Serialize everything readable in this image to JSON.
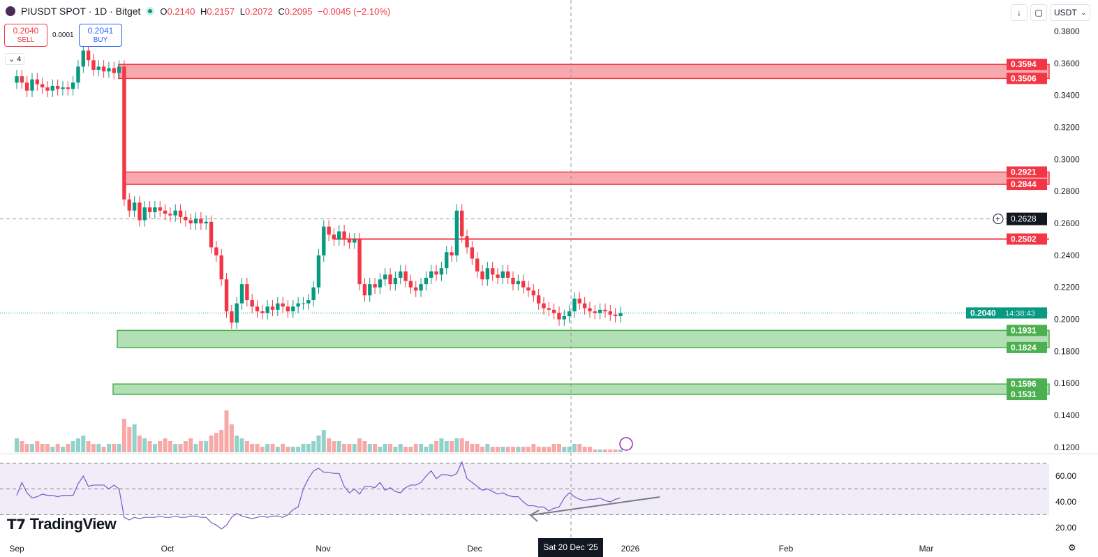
{
  "header": {
    "symbol": "PIUSDT SPOT · 1D · Bitget",
    "open_label": "O",
    "open": "0.2140",
    "high_label": "H",
    "high": "0.2157",
    "low_label": "L",
    "low": "0.2072",
    "close_label": "C",
    "close": "0.2095",
    "change": "−0.0045 (−2.10%)"
  },
  "trade": {
    "sell_price": "0.2040",
    "sell_label": "SELL",
    "buy_price": "0.2041",
    "buy_label": "BUY",
    "spread": "0.0001"
  },
  "indicators_count": "4",
  "toolbar": {
    "currency": "USDT",
    "download_icon": "arrow-down-icon",
    "fullscreen_icon": "fullscreen-icon"
  },
  "colors": {
    "up": "#089981",
    "down": "#f23645",
    "up_volume": "#92d2cc",
    "down_volume": "#f7a9a7",
    "resistance": "#f23645",
    "support": "#4caf50",
    "rsi": "#7e57c2"
  },
  "price_axis": {
    "ticks": [
      "0.3800",
      "0.3600",
      "0.3400",
      "0.3200",
      "0.3000",
      "0.2800",
      "0.2600",
      "0.2400",
      "0.2200",
      "0.2000",
      "0.1800",
      "0.1600",
      "0.1400",
      "0.1200"
    ]
  },
  "rsi_axis": {
    "ticks": [
      "60.00",
      "40.00",
      "20.00"
    ]
  },
  "time_axis": {
    "labels": [
      "Sep",
      "Oct",
      "Nov",
      "Dec",
      "2026",
      "Feb",
      "Mar"
    ],
    "crosshair_date": "Sat 20 Dec '25"
  },
  "levels": {
    "resistance_zones": [
      {
        "top": "0.3594",
        "bottom": "0.3506"
      },
      {
        "top": "0.2921",
        "bottom": "0.2844"
      }
    ],
    "resistance_line": "0.2502",
    "support_zones": [
      {
        "top": "0.1931",
        "bottom": "0.1824"
      },
      {
        "top": "0.1596",
        "bottom": "0.1531"
      }
    ],
    "crosshair_price": "0.2628",
    "last_price": "0.2040",
    "countdown": "14:38:43"
  },
  "brand": "TradingView",
  "chart_data": {
    "type": "candlestick",
    "start": "Sep 1",
    "closes": [
      0.352,
      0.348,
      0.343,
      0.35,
      0.347,
      0.345,
      0.343,
      0.346,
      0.344,
      0.345,
      0.344,
      0.348,
      0.358,
      0.368,
      0.362,
      0.356,
      0.358,
      0.355,
      0.357,
      0.354,
      0.358,
      0.275,
      0.268,
      0.273,
      0.262,
      0.27,
      0.267,
      0.27,
      0.268,
      0.266,
      0.265,
      0.268,
      0.264,
      0.262,
      0.26,
      0.263,
      0.26,
      0.261,
      0.245,
      0.24,
      0.225,
      0.205,
      0.198,
      0.21,
      0.222,
      0.212,
      0.208,
      0.205,
      0.204,
      0.208,
      0.206,
      0.21,
      0.208,
      0.205,
      0.208,
      0.21,
      0.21,
      0.212,
      0.22,
      0.24,
      0.258,
      0.253,
      0.25,
      0.255,
      0.25,
      0.248,
      0.25,
      0.222,
      0.215,
      0.222,
      0.22,
      0.225,
      0.228,
      0.222,
      0.226,
      0.23,
      0.224,
      0.22,
      0.218,
      0.222,
      0.226,
      0.23,
      0.228,
      0.232,
      0.242,
      0.24,
      0.268,
      0.252,
      0.245,
      0.238,
      0.23,
      0.225,
      0.232,
      0.228,
      0.226,
      0.23,
      0.226,
      0.222,
      0.224,
      0.22,
      0.218,
      0.215,
      0.21,
      0.207,
      0.206,
      0.204,
      0.2,
      0.202,
      0.205,
      0.213,
      0.21,
      0.207,
      0.205,
      0.204,
      0.206,
      0.205,
      0.203,
      0.202,
      0.204
    ],
    "volumes": [
      5,
      4,
      3,
      3,
      4,
      3,
      3,
      2,
      3,
      2,
      3,
      4,
      5,
      6,
      4,
      3,
      3,
      2,
      3,
      3,
      3,
      12,
      9,
      10,
      6,
      5,
      4,
      3,
      4,
      5,
      4,
      3,
      3,
      4,
      5,
      3,
      4,
      4,
      6,
      7,
      8,
      15,
      10,
      6,
      5,
      4,
      3,
      3,
      2,
      3,
      3,
      2,
      3,
      2,
      2,
      2,
      3,
      3,
      4,
      6,
      8,
      5,
      4,
      4,
      3,
      3,
      3,
      5,
      4,
      3,
      3,
      2,
      3,
      3,
      2,
      3,
      2,
      2,
      3,
      3,
      2,
      3,
      4,
      5,
      4,
      4,
      5,
      5,
      4,
      3,
      3,
      2,
      3,
      2,
      2,
      2,
      2,
      2,
      2,
      2,
      2,
      3,
      2,
      2,
      2,
      3,
      3,
      2,
      2,
      3,
      3,
      2,
      2,
      1,
      1,
      1,
      1,
      1,
      1
    ],
    "rsi": [
      45,
      55,
      47,
      43,
      44,
      46,
      45,
      45,
      44,
      45,
      45,
      45,
      54,
      60,
      52,
      53,
      53,
      53,
      50,
      53,
      50,
      28,
      26,
      28,
      27,
      28,
      28,
      28,
      29,
      28,
      28,
      29,
      28,
      28,
      29,
      29,
      28,
      28,
      24,
      22,
      19,
      22,
      28,
      31,
      29,
      28,
      27,
      28,
      29,
      28,
      29,
      29,
      28,
      30,
      34,
      36,
      50,
      58,
      64,
      66,
      63,
      63,
      62,
      62,
      52,
      47,
      50,
      46,
      52,
      52,
      51,
      55,
      49,
      51,
      48,
      47,
      51,
      53,
      53,
      55,
      60,
      64,
      58,
      61,
      61,
      60,
      62,
      71,
      58,
      55,
      52,
      49,
      50,
      48,
      46,
      47,
      45,
      44,
      44,
      40,
      37,
      37,
      36,
      36,
      33,
      35,
      36,
      43,
      47,
      44,
      42,
      41,
      42,
      42,
      43,
      41,
      40,
      42,
      43
    ],
    "rsi_levels": [
      70,
      50,
      30
    ],
    "ylim": [
      0.12,
      0.39
    ]
  }
}
